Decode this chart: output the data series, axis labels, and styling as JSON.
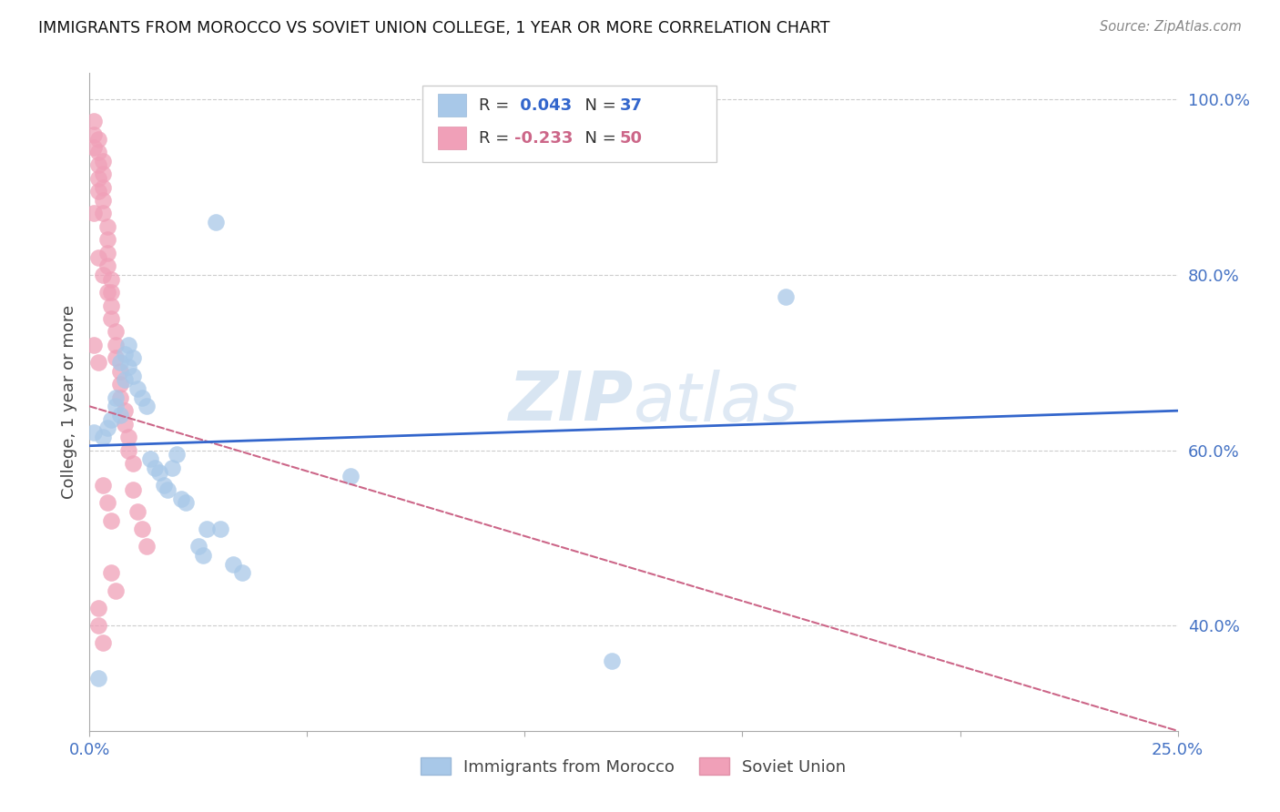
{
  "title": "IMMIGRANTS FROM MOROCCO VS SOVIET UNION COLLEGE, 1 YEAR OR MORE CORRELATION CHART",
  "source": "Source: ZipAtlas.com",
  "ylabel": "College, 1 year or more",
  "xlim": [
    0.0,
    0.25
  ],
  "ylim": [
    0.28,
    1.03
  ],
  "yticks": [
    0.4,
    0.6,
    0.8,
    1.0
  ],
  "xticks": [
    0.0,
    0.05,
    0.1,
    0.15,
    0.2,
    0.25
  ],
  "morocco_color": "#a8c8e8",
  "soviet_color": "#f0a0b8",
  "morocco_line_color": "#3366cc",
  "soviet_line_color": "#cc6688",
  "background_color": "#ffffff",
  "grid_color": "#cccccc",
  "watermark": "ZIPatlas",
  "morocco_R": 0.043,
  "morocco_N": 37,
  "soviet_R": -0.233,
  "soviet_N": 50,
  "morocco_points": [
    [
      0.001,
      0.62
    ],
    [
      0.003,
      0.615
    ],
    [
      0.004,
      0.625
    ],
    [
      0.005,
      0.635
    ],
    [
      0.006,
      0.65
    ],
    [
      0.006,
      0.66
    ],
    [
      0.007,
      0.64
    ],
    [
      0.007,
      0.7
    ],
    [
      0.008,
      0.68
    ],
    [
      0.008,
      0.71
    ],
    [
      0.009,
      0.695
    ],
    [
      0.009,
      0.72
    ],
    [
      0.01,
      0.705
    ],
    [
      0.01,
      0.685
    ],
    [
      0.011,
      0.67
    ],
    [
      0.012,
      0.66
    ],
    [
      0.013,
      0.65
    ],
    [
      0.014,
      0.59
    ],
    [
      0.015,
      0.58
    ],
    [
      0.016,
      0.575
    ],
    [
      0.017,
      0.56
    ],
    [
      0.018,
      0.555
    ],
    [
      0.019,
      0.58
    ],
    [
      0.02,
      0.595
    ],
    [
      0.021,
      0.545
    ],
    [
      0.022,
      0.54
    ],
    [
      0.025,
      0.49
    ],
    [
      0.026,
      0.48
    ],
    [
      0.027,
      0.51
    ],
    [
      0.03,
      0.51
    ],
    [
      0.033,
      0.47
    ],
    [
      0.035,
      0.46
    ],
    [
      0.06,
      0.57
    ],
    [
      0.12,
      0.36
    ],
    [
      0.16,
      0.775
    ],
    [
      0.029,
      0.86
    ],
    [
      0.002,
      0.34
    ]
  ],
  "soviet_points": [
    [
      0.001,
      0.975
    ],
    [
      0.001,
      0.96
    ],
    [
      0.001,
      0.945
    ],
    [
      0.002,
      0.955
    ],
    [
      0.002,
      0.94
    ],
    [
      0.002,
      0.925
    ],
    [
      0.002,
      0.91
    ],
    [
      0.002,
      0.895
    ],
    [
      0.003,
      0.93
    ],
    [
      0.003,
      0.915
    ],
    [
      0.003,
      0.9
    ],
    [
      0.003,
      0.885
    ],
    [
      0.003,
      0.87
    ],
    [
      0.004,
      0.855
    ],
    [
      0.004,
      0.84
    ],
    [
      0.004,
      0.825
    ],
    [
      0.004,
      0.81
    ],
    [
      0.005,
      0.795
    ],
    [
      0.005,
      0.78
    ],
    [
      0.005,
      0.765
    ],
    [
      0.005,
      0.75
    ],
    [
      0.006,
      0.735
    ],
    [
      0.006,
      0.72
    ],
    [
      0.006,
      0.705
    ],
    [
      0.007,
      0.69
    ],
    [
      0.007,
      0.675
    ],
    [
      0.007,
      0.66
    ],
    [
      0.008,
      0.645
    ],
    [
      0.008,
      0.63
    ],
    [
      0.009,
      0.615
    ],
    [
      0.009,
      0.6
    ],
    [
      0.01,
      0.585
    ],
    [
      0.01,
      0.555
    ],
    [
      0.011,
      0.53
    ],
    [
      0.012,
      0.51
    ],
    [
      0.013,
      0.49
    ],
    [
      0.001,
      0.87
    ],
    [
      0.002,
      0.82
    ],
    [
      0.003,
      0.8
    ],
    [
      0.004,
      0.78
    ],
    [
      0.005,
      0.46
    ],
    [
      0.006,
      0.44
    ],
    [
      0.002,
      0.42
    ],
    [
      0.002,
      0.4
    ],
    [
      0.003,
      0.38
    ],
    [
      0.003,
      0.56
    ],
    [
      0.004,
      0.54
    ],
    [
      0.005,
      0.52
    ],
    [
      0.001,
      0.72
    ],
    [
      0.002,
      0.7
    ]
  ]
}
